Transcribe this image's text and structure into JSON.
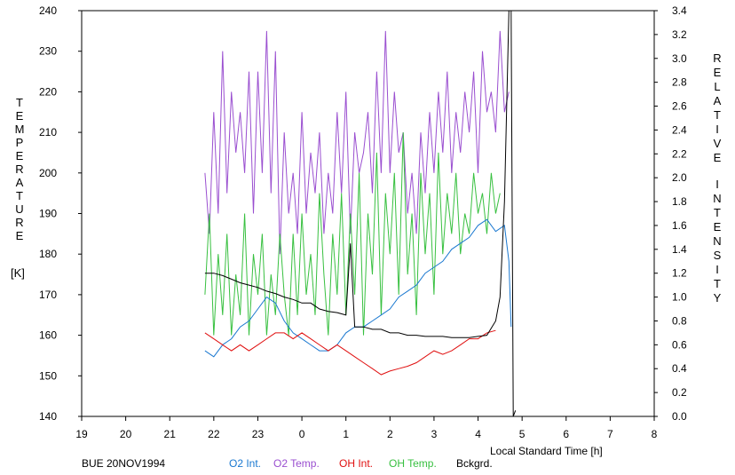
{
  "chart_data": {
    "type": "line",
    "station_label": "BUE 20NOV1994",
    "left_axis": {
      "label_letters": [
        "T",
        "E",
        "M",
        "P",
        "E",
        "R",
        "A",
        "T",
        "U",
        "R",
        "E"
      ],
      "unit_label": "[K]",
      "min": 140,
      "max": 240,
      "ticks": [
        "140",
        "150",
        "160",
        "170",
        "180",
        "190",
        "200",
        "210",
        "220",
        "230",
        "240"
      ]
    },
    "right_axis": {
      "label_letters": [
        "R",
        "E",
        "L",
        "A",
        "T",
        "I",
        "V",
        "E"
      ],
      "label_letters_2": [
        "I",
        "N",
        "T",
        "E",
        "N",
        "S",
        "I",
        "T",
        "Y"
      ],
      "min": 0.0,
      "max": 3.4,
      "ticks": [
        "0.0",
        "0.2",
        "0.4",
        "0.6",
        "0.8",
        "1.0",
        "1.2",
        "1.4",
        "1.6",
        "1.8",
        "2.0",
        "2.2",
        "2.4",
        "2.6",
        "2.8",
        "3.0",
        "3.2",
        "3.4"
      ]
    },
    "x_axis": {
      "label": "Local Standard Time [h]",
      "ticks": [
        "19",
        "20",
        "21",
        "22",
        "23",
        "0",
        "1",
        "2",
        "3",
        "4",
        "5",
        "6",
        "7",
        "8"
      ]
    },
    "legend": [
      "O2 Int.",
      "O2 Temp.",
      "OH Int.",
      "OH Temp.",
      "Bckgrd."
    ],
    "colors": {
      "O2 Int.": "#1a78d0",
      "O2 Temp.": "#9a4fd0",
      "OH Int.": "#e01010",
      "OH Temp.": "#38c040",
      "Bckgrd.": "#000000"
    },
    "series": [
      {
        "name": "O2 Temp.",
        "axis": "left",
        "x": [
          21.8,
          21.9,
          22.0,
          22.1,
          22.2,
          22.3,
          22.4,
          22.5,
          22.6,
          22.7,
          22.8,
          22.9,
          23.0,
          23.1,
          23.2,
          23.3,
          23.4,
          23.5,
          23.6,
          23.7,
          23.8,
          23.9,
          24.0,
          24.1,
          24.2,
          24.3,
          24.4,
          24.5,
          24.6,
          24.7,
          24.8,
          24.9,
          25.0,
          25.1,
          25.2,
          25.3,
          25.4,
          25.5,
          25.6,
          25.7,
          25.8,
          25.9,
          26.0,
          26.1,
          26.2,
          26.3,
          26.4,
          26.5,
          26.6,
          26.7,
          26.8,
          26.9,
          27.0,
          27.1,
          27.2,
          27.3,
          27.4,
          27.5,
          27.6,
          27.7,
          27.8,
          27.9,
          28.0,
          28.1,
          28.2,
          28.3,
          28.4,
          28.5,
          28.6,
          28.7
        ],
        "values": [
          200,
          185,
          215,
          190,
          230,
          195,
          220,
          205,
          215,
          200,
          225,
          190,
          225,
          200,
          235,
          195,
          230,
          180,
          210,
          190,
          200,
          185,
          215,
          190,
          205,
          195,
          210,
          185,
          200,
          190,
          215,
          195,
          220,
          185,
          210,
          200,
          205,
          215,
          195,
          225,
          200,
          235,
          200,
          220,
          205,
          210,
          190,
          200,
          185,
          210,
          195,
          215,
          200,
          220,
          205,
          225,
          200,
          215,
          205,
          220,
          210,
          225,
          200,
          230,
          215,
          220,
          210,
          235,
          215,
          220
        ],
        "note_axis": "x in hours since previous 00 (24 = 0 h)"
      },
      {
        "name": "OH Temp.",
        "axis": "left",
        "x": [
          21.8,
          21.9,
          22.0,
          22.1,
          22.2,
          22.3,
          22.4,
          22.5,
          22.6,
          22.7,
          22.8,
          22.9,
          23.0,
          23.1,
          23.2,
          23.3,
          23.4,
          23.5,
          23.6,
          23.7,
          23.8,
          23.9,
          24.0,
          24.1,
          24.2,
          24.3,
          24.4,
          24.5,
          24.6,
          24.7,
          24.8,
          24.9,
          25.0,
          25.1,
          25.2,
          25.3,
          25.4,
          25.5,
          25.6,
          25.7,
          25.8,
          25.9,
          26.0,
          26.1,
          26.2,
          26.3,
          26.4,
          26.5,
          26.6,
          26.7,
          26.8,
          26.9,
          27.0,
          27.1,
          27.2,
          27.3,
          27.4,
          27.5,
          27.6,
          27.7,
          27.8,
          27.9,
          28.0,
          28.1,
          28.2,
          28.3,
          28.4,
          28.5
        ],
        "values": [
          170,
          190,
          160,
          180,
          165,
          185,
          160,
          175,
          165,
          190,
          160,
          180,
          170,
          185,
          160,
          175,
          165,
          185,
          170,
          160,
          185,
          165,
          190,
          170,
          180,
          165,
          195,
          175,
          160,
          185,
          170,
          195,
          165,
          190,
          170,
          200,
          160,
          190,
          175,
          205,
          165,
          195,
          180,
          200,
          170,
          210,
          175,
          190,
          165,
          200,
          180,
          195,
          170,
          205,
          180,
          195,
          185,
          200,
          180,
          190,
          185,
          200,
          190,
          195,
          185,
          200,
          190,
          195
        ]
      },
      {
        "name": "O2 Int.",
        "axis": "right",
        "x": [
          21.8,
          22.0,
          22.2,
          22.4,
          22.6,
          22.8,
          23.0,
          23.2,
          23.4,
          23.6,
          23.8,
          24.0,
          24.2,
          24.4,
          24.6,
          24.8,
          25.0,
          25.2,
          25.4,
          25.6,
          25.8,
          26.0,
          26.2,
          26.4,
          26.6,
          26.8,
          27.0,
          27.2,
          27.4,
          27.6,
          27.8,
          28.0,
          28.2,
          28.4,
          28.6,
          28.7,
          28.75
        ],
        "values": [
          0.55,
          0.5,
          0.6,
          0.65,
          0.75,
          0.8,
          0.9,
          1.0,
          0.95,
          0.8,
          0.7,
          0.65,
          0.6,
          0.55,
          0.55,
          0.6,
          0.7,
          0.75,
          0.75,
          0.8,
          0.85,
          0.9,
          1.0,
          1.05,
          1.1,
          1.2,
          1.25,
          1.3,
          1.4,
          1.45,
          1.5,
          1.6,
          1.65,
          1.55,
          1.6,
          1.3,
          0.75
        ]
      },
      {
        "name": "OH Int.",
        "axis": "right",
        "x": [
          21.8,
          22.0,
          22.2,
          22.4,
          22.6,
          22.8,
          23.0,
          23.2,
          23.4,
          23.6,
          23.8,
          24.0,
          24.2,
          24.4,
          24.6,
          24.8,
          25.0,
          25.2,
          25.4,
          25.6,
          25.8,
          26.0,
          26.2,
          26.4,
          26.6,
          26.8,
          27.0,
          27.2,
          27.4,
          27.6,
          27.8,
          28.0,
          28.2,
          28.4
        ],
        "values": [
          0.7,
          0.65,
          0.6,
          0.55,
          0.6,
          0.55,
          0.6,
          0.65,
          0.7,
          0.7,
          0.65,
          0.7,
          0.65,
          0.6,
          0.55,
          0.6,
          0.55,
          0.5,
          0.45,
          0.4,
          0.35,
          0.38,
          0.4,
          0.42,
          0.45,
          0.5,
          0.55,
          0.52,
          0.55,
          0.6,
          0.65,
          0.65,
          0.7,
          0.72
        ]
      },
      {
        "name": "Bckgrd.",
        "axis": "right",
        "x": [
          21.8,
          22.0,
          22.2,
          22.4,
          22.6,
          22.8,
          23.0,
          23.2,
          23.4,
          23.6,
          23.8,
          24.0,
          24.2,
          24.4,
          24.6,
          24.8,
          25.0,
          25.1,
          25.2,
          25.3,
          25.4,
          25.6,
          25.8,
          26.0,
          26.2,
          26.4,
          26.6,
          26.8,
          27.0,
          27.2,
          27.4,
          27.6,
          27.8,
          28.0,
          28.2,
          28.4,
          28.5,
          28.6,
          28.7,
          28.75,
          28.8,
          28.85
        ],
        "values": [
          1.2,
          1.2,
          1.18,
          1.15,
          1.12,
          1.1,
          1.08,
          1.05,
          1.03,
          1.0,
          0.98,
          0.95,
          0.95,
          0.9,
          0.88,
          0.87,
          0.85,
          1.45,
          0.75,
          0.75,
          0.75,
          0.73,
          0.73,
          0.7,
          0.7,
          0.68,
          0.68,
          0.67,
          0.67,
          0.67,
          0.66,
          0.66,
          0.66,
          0.67,
          0.68,
          0.8,
          1.0,
          1.8,
          3.4,
          3.4,
          0.0,
          0.05
        ]
      }
    ]
  }
}
